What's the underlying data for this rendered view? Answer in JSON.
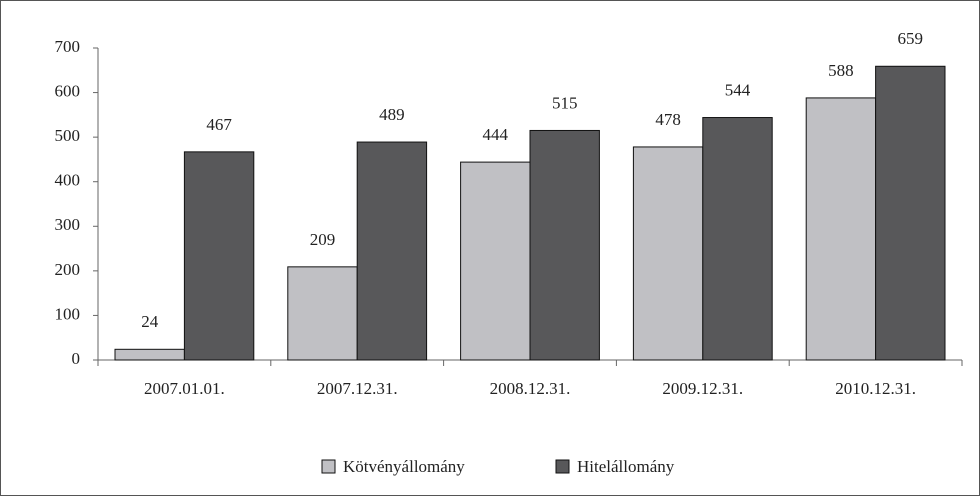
{
  "chart_data": {
    "type": "bar",
    "categories": [
      "2007.01.01.",
      "2007.12.31.",
      "2008.12.31.",
      "2009.12.31.",
      "2010.12.31."
    ],
    "series": [
      {
        "name": "Kötvényállomány",
        "color": "#c0c0c4",
        "values": [
          24,
          209,
          444,
          478,
          588
        ]
      },
      {
        "name": "Hitelállomány",
        "color": "#58585a",
        "values": [
          467,
          489,
          515,
          544,
          659
        ]
      }
    ],
    "ylim": [
      0,
      700
    ],
    "yticks": [
      0,
      100,
      200,
      300,
      400,
      500,
      600,
      700
    ],
    "grid": false,
    "legend": "bottom"
  }
}
